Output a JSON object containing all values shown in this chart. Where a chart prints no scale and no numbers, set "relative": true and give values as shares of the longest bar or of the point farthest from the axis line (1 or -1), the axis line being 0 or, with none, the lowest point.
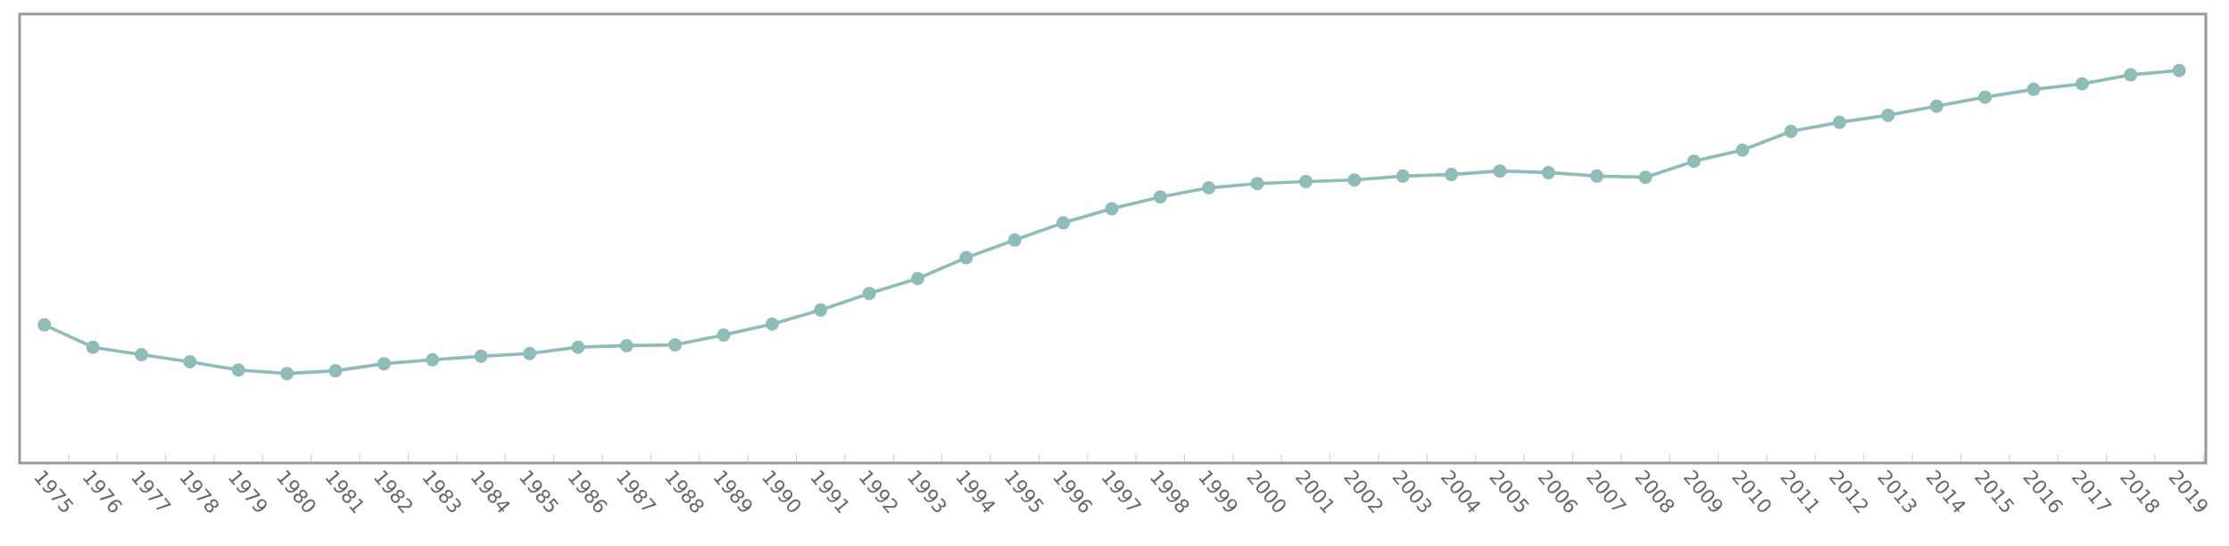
{
  "chart_data": {
    "type": "line",
    "relative": true,
    "marker": "circle",
    "line_style": "solid",
    "categories": [
      "1975",
      "1976",
      "1977",
      "1978",
      "1979",
      "1980",
      "1981",
      "1982",
      "1983",
      "1984",
      "1985",
      "1986",
      "1987",
      "1988",
      "1989",
      "1990",
      "1991",
      "1992",
      "1993",
      "1994",
      "1995",
      "1996",
      "1997",
      "1998",
      "1999",
      "2000",
      "2001",
      "2002",
      "2003",
      "2004",
      "2005",
      "2006",
      "2007",
      "2008",
      "2009",
      "2010",
      "2011",
      "2012",
      "2013",
      "2014",
      "2015",
      "2016",
      "2017",
      "2018",
      "2019"
    ],
    "series": [
      {
        "color": "#8fbcb7",
        "values": [
          0.352,
          0.295,
          0.276,
          0.258,
          0.237,
          0.228,
          0.235,
          0.253,
          0.263,
          0.272,
          0.279,
          0.295,
          0.299,
          0.301,
          0.326,
          0.354,
          0.39,
          0.432,
          0.47,
          0.523,
          0.568,
          0.612,
          0.648,
          0.678,
          0.701,
          0.712,
          0.717,
          0.721,
          0.731,
          0.735,
          0.744,
          0.74,
          0.731,
          0.728,
          0.769,
          0.797,
          0.845,
          0.868,
          0.886,
          0.909,
          0.932,
          0.952,
          0.966,
          0.989,
          1
        ]
      }
    ]
  }
}
